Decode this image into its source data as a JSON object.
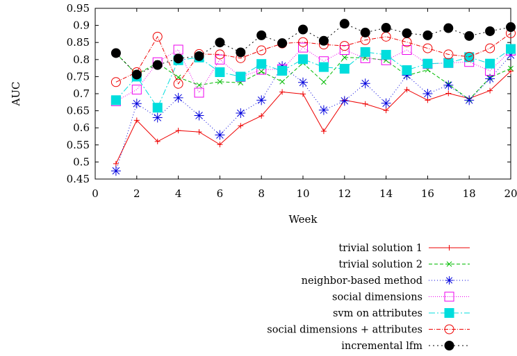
{
  "chart_data": {
    "type": "line",
    "title": "",
    "xlabel": "Week",
    "ylabel": "AUC",
    "xlim": [
      0,
      20
    ],
    "ylim": [
      0.45,
      0.95
    ],
    "xticks": [
      0,
      2,
      4,
      6,
      8,
      10,
      12,
      14,
      16,
      18,
      20
    ],
    "yticks": [
      0.45,
      0.5,
      0.55,
      0.6,
      0.65,
      0.7,
      0.75,
      0.8,
      0.85,
      0.9,
      0.95
    ],
    "grid": false,
    "legend_position": "below plot, right-aligned",
    "x": [
      1,
      2,
      3,
      4,
      5,
      6,
      7,
      8,
      9,
      10,
      11,
      12,
      13,
      14,
      15,
      16,
      17,
      18,
      19,
      20
    ],
    "series": [
      {
        "name": "trivial solution 1",
        "color": "#ee0000",
        "dash": "solid",
        "marker": "plus",
        "values": [
          0.495,
          0.622,
          0.56,
          0.592,
          0.588,
          0.551,
          0.606,
          0.635,
          0.705,
          0.699,
          0.59,
          0.681,
          0.67,
          0.651,
          0.712,
          0.681,
          0.701,
          0.686,
          0.709,
          0.766
        ]
      },
      {
        "name": "trivial solution 2",
        "color": "#00bb00",
        "dash": "5,3",
        "marker": "cross",
        "values": [
          0.818,
          0.757,
          0.79,
          0.748,
          0.725,
          0.735,
          0.732,
          0.765,
          0.735,
          0.79,
          0.734,
          0.806,
          0.805,
          0.798,
          0.753,
          0.77,
          0.728,
          0.683,
          0.747,
          0.774
        ]
      },
      {
        "name": "neighbor-based method",
        "color": "#0000dd",
        "dash": "1,3",
        "marker": "asterisk",
        "values": [
          0.474,
          0.671,
          0.63,
          0.688,
          0.636,
          0.579,
          0.643,
          0.681,
          0.781,
          0.733,
          0.652,
          0.679,
          0.73,
          0.672,
          0.754,
          0.7,
          0.725,
          0.681,
          0.744,
          0.813
        ]
      },
      {
        "name": "social dimensions",
        "color": "#ee00ee",
        "dash": "1,2",
        "marker": "square",
        "values": [
          0.678,
          0.712,
          0.792,
          0.829,
          0.703,
          0.8,
          0.749,
          0.77,
          0.772,
          0.835,
          0.795,
          0.828,
          0.804,
          0.798,
          0.828,
          0.787,
          0.79,
          0.793,
          0.767,
          0.826
        ]
      },
      {
        "name": "svm on attributes",
        "color": "#00dddd",
        "dash": "9,3,2,3",
        "marker": "filled-square",
        "values": [
          0.681,
          0.75,
          0.659,
          0.798,
          0.806,
          0.763,
          0.75,
          0.787,
          0.767,
          0.801,
          0.778,
          0.773,
          0.822,
          0.814,
          0.769,
          0.788,
          0.79,
          0.807,
          0.788,
          0.831
        ]
      },
      {
        "name": "social dimensions + attributes",
        "color": "#ee0000",
        "dash": "6,2,1,2",
        "marker": "circle",
        "values": [
          0.734,
          0.763,
          0.867,
          0.729,
          0.816,
          0.815,
          0.804,
          0.827,
          0.847,
          0.851,
          0.844,
          0.84,
          0.857,
          0.867,
          0.851,
          0.833,
          0.815,
          0.808,
          0.833,
          0.877
        ]
      },
      {
        "name": "incremental lfm",
        "color": "#000000",
        "dash": "2,4",
        "marker": "filled-circle",
        "values": [
          0.819,
          0.756,
          0.784,
          0.803,
          0.81,
          0.85,
          0.821,
          0.871,
          0.848,
          0.888,
          0.855,
          0.905,
          0.879,
          0.893,
          0.877,
          0.871,
          0.892,
          0.869,
          0.883,
          0.895
        ]
      }
    ]
  }
}
